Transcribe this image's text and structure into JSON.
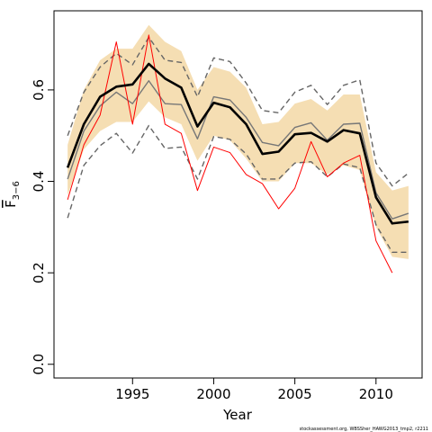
{
  "chart_data": {
    "type": "line",
    "xlabel": "Year",
    "ylabel": "F",
    "ylabel_subscript": "3−6",
    "footnote": "stockassessment.org, WBSSher_HAWG2013_tmp2, r2211",
    "x": [
      1991,
      1992,
      1993,
      1994,
      1995,
      1996,
      1997,
      1998,
      1999,
      2000,
      2001,
      2002,
      2003,
      2004,
      2005,
      2006,
      2007,
      2008,
      2009,
      2010,
      2011,
      2012
    ],
    "xlim": [
      1990.16,
      2012.84
    ],
    "xticks": [
      1995,
      2000,
      2005,
      2010
    ],
    "ylim": [
      -0.03,
      0.773
    ],
    "yticks": [
      {
        "value": 0,
        "label": "0.0"
      },
      0.2,
      0.4,
      0.6
    ],
    "band": {
      "color": "#f5deb3",
      "upper": [
        0.48,
        0.6,
        0.665,
        0.69,
        0.69,
        0.742,
        0.705,
        0.685,
        0.6,
        0.65,
        0.64,
        0.605,
        0.525,
        0.53,
        0.57,
        0.58,
        0.555,
        0.59,
        0.59,
        0.42,
        0.38,
        0.39
      ],
      "lower": [
        0.37,
        0.47,
        0.51,
        0.53,
        0.53,
        0.575,
        0.54,
        0.525,
        0.445,
        0.5,
        0.49,
        0.45,
        0.4,
        0.4,
        0.44,
        0.44,
        0.415,
        0.435,
        0.425,
        0.3,
        0.235,
        0.23
      ]
    },
    "series": [
      {
        "color": "#666666",
        "dashed": true,
        "width": 1.4,
        "values": [
          0.5,
          0.595,
          0.65,
          0.68,
          0.655,
          0.715,
          0.665,
          0.66,
          0.585,
          0.67,
          0.662,
          0.615,
          0.555,
          0.55,
          0.595,
          0.61,
          0.568,
          0.61,
          0.622,
          0.44,
          0.39,
          0.418
        ]
      },
      {
        "color": "#666666",
        "dashed": true,
        "width": 1.4,
        "values": [
          0.32,
          0.435,
          0.478,
          0.505,
          0.462,
          0.522,
          0.472,
          0.475,
          0.405,
          0.498,
          0.492,
          0.46,
          0.405,
          0.405,
          0.44,
          0.443,
          0.41,
          0.438,
          0.43,
          0.305,
          0.245,
          0.245
        ]
      },
      {
        "color": "#777777",
        "dashed": false,
        "width": 1.4,
        "values": [
          0.405,
          0.51,
          0.565,
          0.595,
          0.57,
          0.62,
          0.57,
          0.568,
          0.493,
          0.585,
          0.578,
          0.54,
          0.485,
          0.478,
          0.518,
          0.528,
          0.49,
          0.525,
          0.527,
          0.375,
          0.318,
          0.33
        ]
      },
      {
        "color": "#ff0000",
        "dashed": false,
        "width": 1,
        "values": [
          0.36,
          0.48,
          0.545,
          0.705,
          0.525,
          0.72,
          0.525,
          0.505,
          0.38,
          0.475,
          0.463,
          0.415,
          0.395,
          0.34,
          0.385,
          0.487,
          0.41,
          0.44,
          0.457,
          0.27,
          0.2,
          null
        ]
      },
      {
        "color": "#000000",
        "dashed": false,
        "width": 2.6,
        "values": [
          0.43,
          0.525,
          0.585,
          0.607,
          0.612,
          0.657,
          0.625,
          0.605,
          0.52,
          0.572,
          0.562,
          0.525,
          0.46,
          0.465,
          0.503,
          0.506,
          0.487,
          0.512,
          0.505,
          0.365,
          0.308,
          0.312
        ]
      }
    ]
  }
}
